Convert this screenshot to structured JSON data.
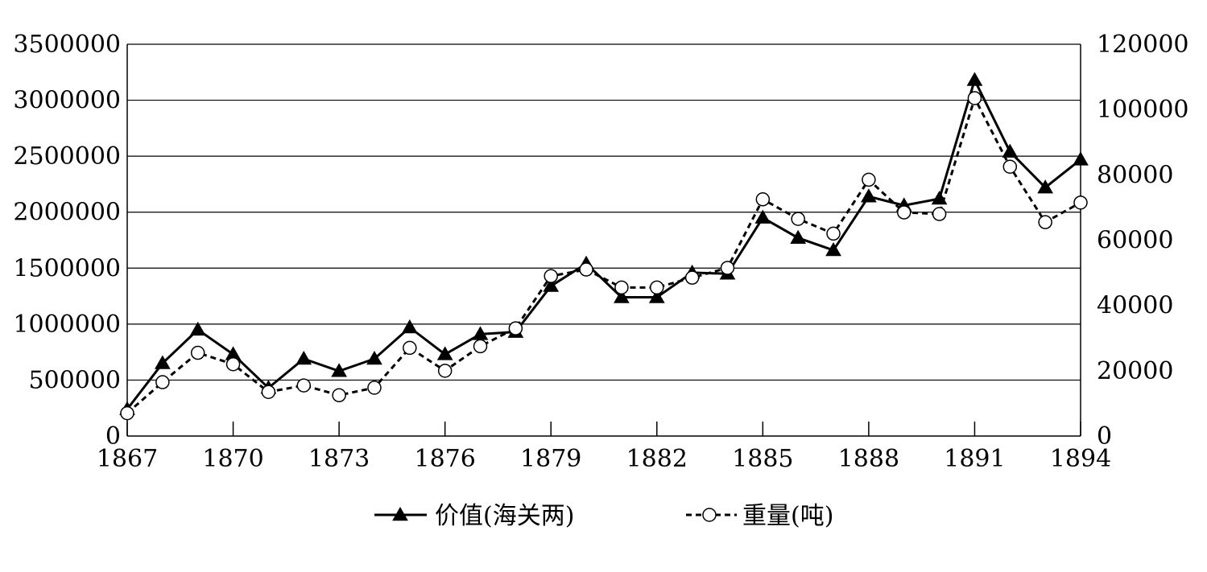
{
  "chart_data": {
    "type": "line",
    "title": "",
    "xlabel": "",
    "ylabel_left": "",
    "ylabel_right": "",
    "x": [
      1867,
      1868,
      1869,
      1870,
      1871,
      1872,
      1873,
      1874,
      1875,
      1876,
      1877,
      1878,
      1879,
      1880,
      1881,
      1882,
      1883,
      1884,
      1885,
      1886,
      1887,
      1888,
      1889,
      1890,
      1891,
      1892,
      1893,
      1894
    ],
    "x_ticks": [
      "1867",
      "1870",
      "1873",
      "1876",
      "1879",
      "1882",
      "1885",
      "1888",
      "1891",
      "1894"
    ],
    "y_left_ticks": [
      "0",
      "500000",
      "1000000",
      "1500000",
      "2000000",
      "2500000",
      "3000000",
      "3500000"
    ],
    "y_right_ticks": [
      "0",
      "20000",
      "40000",
      "60000",
      "80000",
      "100000",
      "120000"
    ],
    "y_right_tick_values": [
      0,
      20000,
      40000,
      60000,
      80000,
      100000,
      120000
    ],
    "ylim_left": [
      0,
      3500000
    ],
    "ylim_right": [
      0,
      120000
    ],
    "grid": "horizontal",
    "legend_position": "bottom",
    "series": [
      {
        "name": "价值(海关两)",
        "axis": "left",
        "style": "solid",
        "marker": "filled-triangle",
        "color": "#000000",
        "values": [
          240000,
          650000,
          950000,
          730000,
          430000,
          690000,
          580000,
          690000,
          970000,
          730000,
          910000,
          930000,
          1340000,
          1540000,
          1240000,
          1240000,
          1460000,
          1450000,
          1950000,
          1770000,
          1660000,
          2140000,
          2060000,
          2120000,
          3180000,
          2540000,
          2220000,
          2470000
        ]
      },
      {
        "name": "重量(吨)",
        "axis": "right",
        "style": "dashed",
        "marker": "open-circle",
        "color": "#000000",
        "values": [
          7000,
          16500,
          25500,
          22000,
          13500,
          15500,
          12500,
          14800,
          27000,
          20000,
          27500,
          33000,
          49000,
          51000,
          45500,
          45500,
          48500,
          51500,
          72500,
          66500,
          62000,
          78500,
          68500,
          68000,
          103500,
          82500,
          65500,
          71500
        ]
      }
    ]
  }
}
